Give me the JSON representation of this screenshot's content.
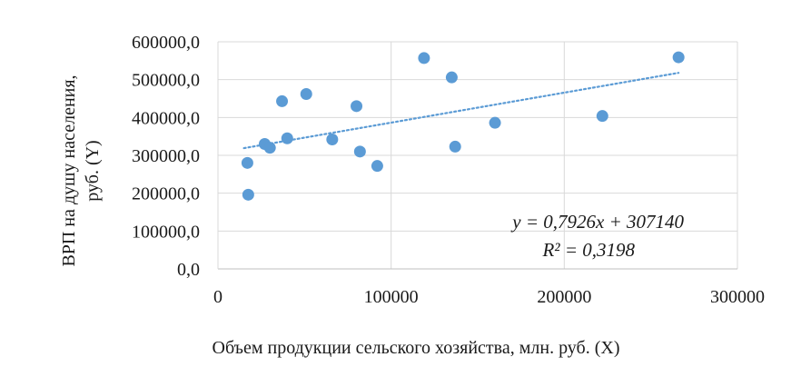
{
  "chart_data": {
    "type": "scatter",
    "xlabel": "Объем продукции сельского хозяйства, млн. руб. (X)",
    "ylabel_lines": [
      "ВРП на душу населения,",
      "руб. (Y)"
    ],
    "xlim": [
      0,
      300000
    ],
    "ylim": [
      0,
      600000
    ],
    "x_ticks": [
      0,
      100000,
      200000,
      300000
    ],
    "x_tick_labels": [
      "0",
      "100000",
      "200000",
      "300000"
    ],
    "y_ticks": [
      0,
      100000,
      200000,
      300000,
      400000,
      500000,
      600000
    ],
    "y_tick_labels": [
      "0,0",
      "100000,0",
      "200000,0",
      "300000,0",
      "400000,0",
      "500000,0",
      "600000,0"
    ],
    "grid": {
      "x": true,
      "y": true
    },
    "marker_color": "#5b9bd5",
    "trendline_color": "#5b9bd5",
    "points": [
      {
        "x": 17000,
        "y": 280000
      },
      {
        "x": 17500,
        "y": 196000
      },
      {
        "x": 27000,
        "y": 330000
      },
      {
        "x": 30000,
        "y": 320000
      },
      {
        "x": 37000,
        "y": 443000
      },
      {
        "x": 40000,
        "y": 345000
      },
      {
        "x": 51000,
        "y": 462000
      },
      {
        "x": 66000,
        "y": 342000
      },
      {
        "x": 80000,
        "y": 430000
      },
      {
        "x": 82000,
        "y": 310000
      },
      {
        "x": 92000,
        "y": 272000
      },
      {
        "x": 119000,
        "y": 557000
      },
      {
        "x": 135000,
        "y": 506000
      },
      {
        "x": 137000,
        "y": 323000
      },
      {
        "x": 160000,
        "y": 386000
      },
      {
        "x": 222000,
        "y": 404000
      },
      {
        "x": 266000,
        "y": 559000
      }
    ],
    "trendline": {
      "type": "linear",
      "slope": 0.7926,
      "intercept": 307140,
      "x_range": [
        15000,
        266000
      ],
      "equation_label": "y = 0,7926x + 307140",
      "r2_label": "R² = 0,3198"
    }
  }
}
